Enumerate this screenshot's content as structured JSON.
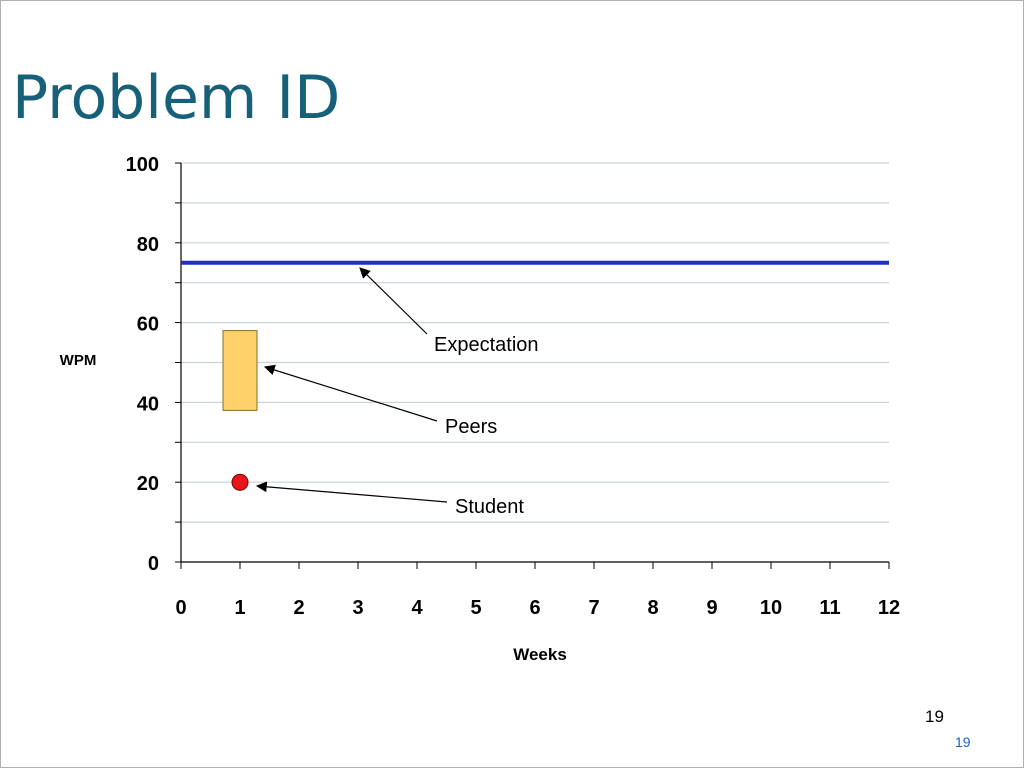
{
  "slide": {
    "title": "Problem ID",
    "page_number": "19",
    "footer_number": "19"
  },
  "chart_data": {
    "type": "scatter",
    "xlabel": "Weeks",
    "ylabel": "WPM",
    "xlim": [
      0,
      12
    ],
    "ylim": [
      0,
      100
    ],
    "xticks": [
      0,
      1,
      2,
      3,
      4,
      5,
      6,
      7,
      8,
      9,
      10,
      11,
      12
    ],
    "yticks": [
      0,
      20,
      40,
      60,
      80,
      100
    ],
    "grid": true,
    "expectation": {
      "y": 75
    },
    "peers": {
      "x": 1,
      "low": 38,
      "high": 58
    },
    "student": {
      "x": 1,
      "y": 20
    },
    "annotations": [
      {
        "text": "Expectation",
        "target": "expectation"
      },
      {
        "text": "Peers",
        "target": "peers"
      },
      {
        "text": "Student",
        "target": "student"
      }
    ],
    "colors": {
      "expectation": "#1f2fbf",
      "peers_fill": "#fdd06a",
      "peers_stroke": "#8a6d2a",
      "student": "#e8161b",
      "grid": "#c9d3d8",
      "title": "#17607a"
    }
  }
}
